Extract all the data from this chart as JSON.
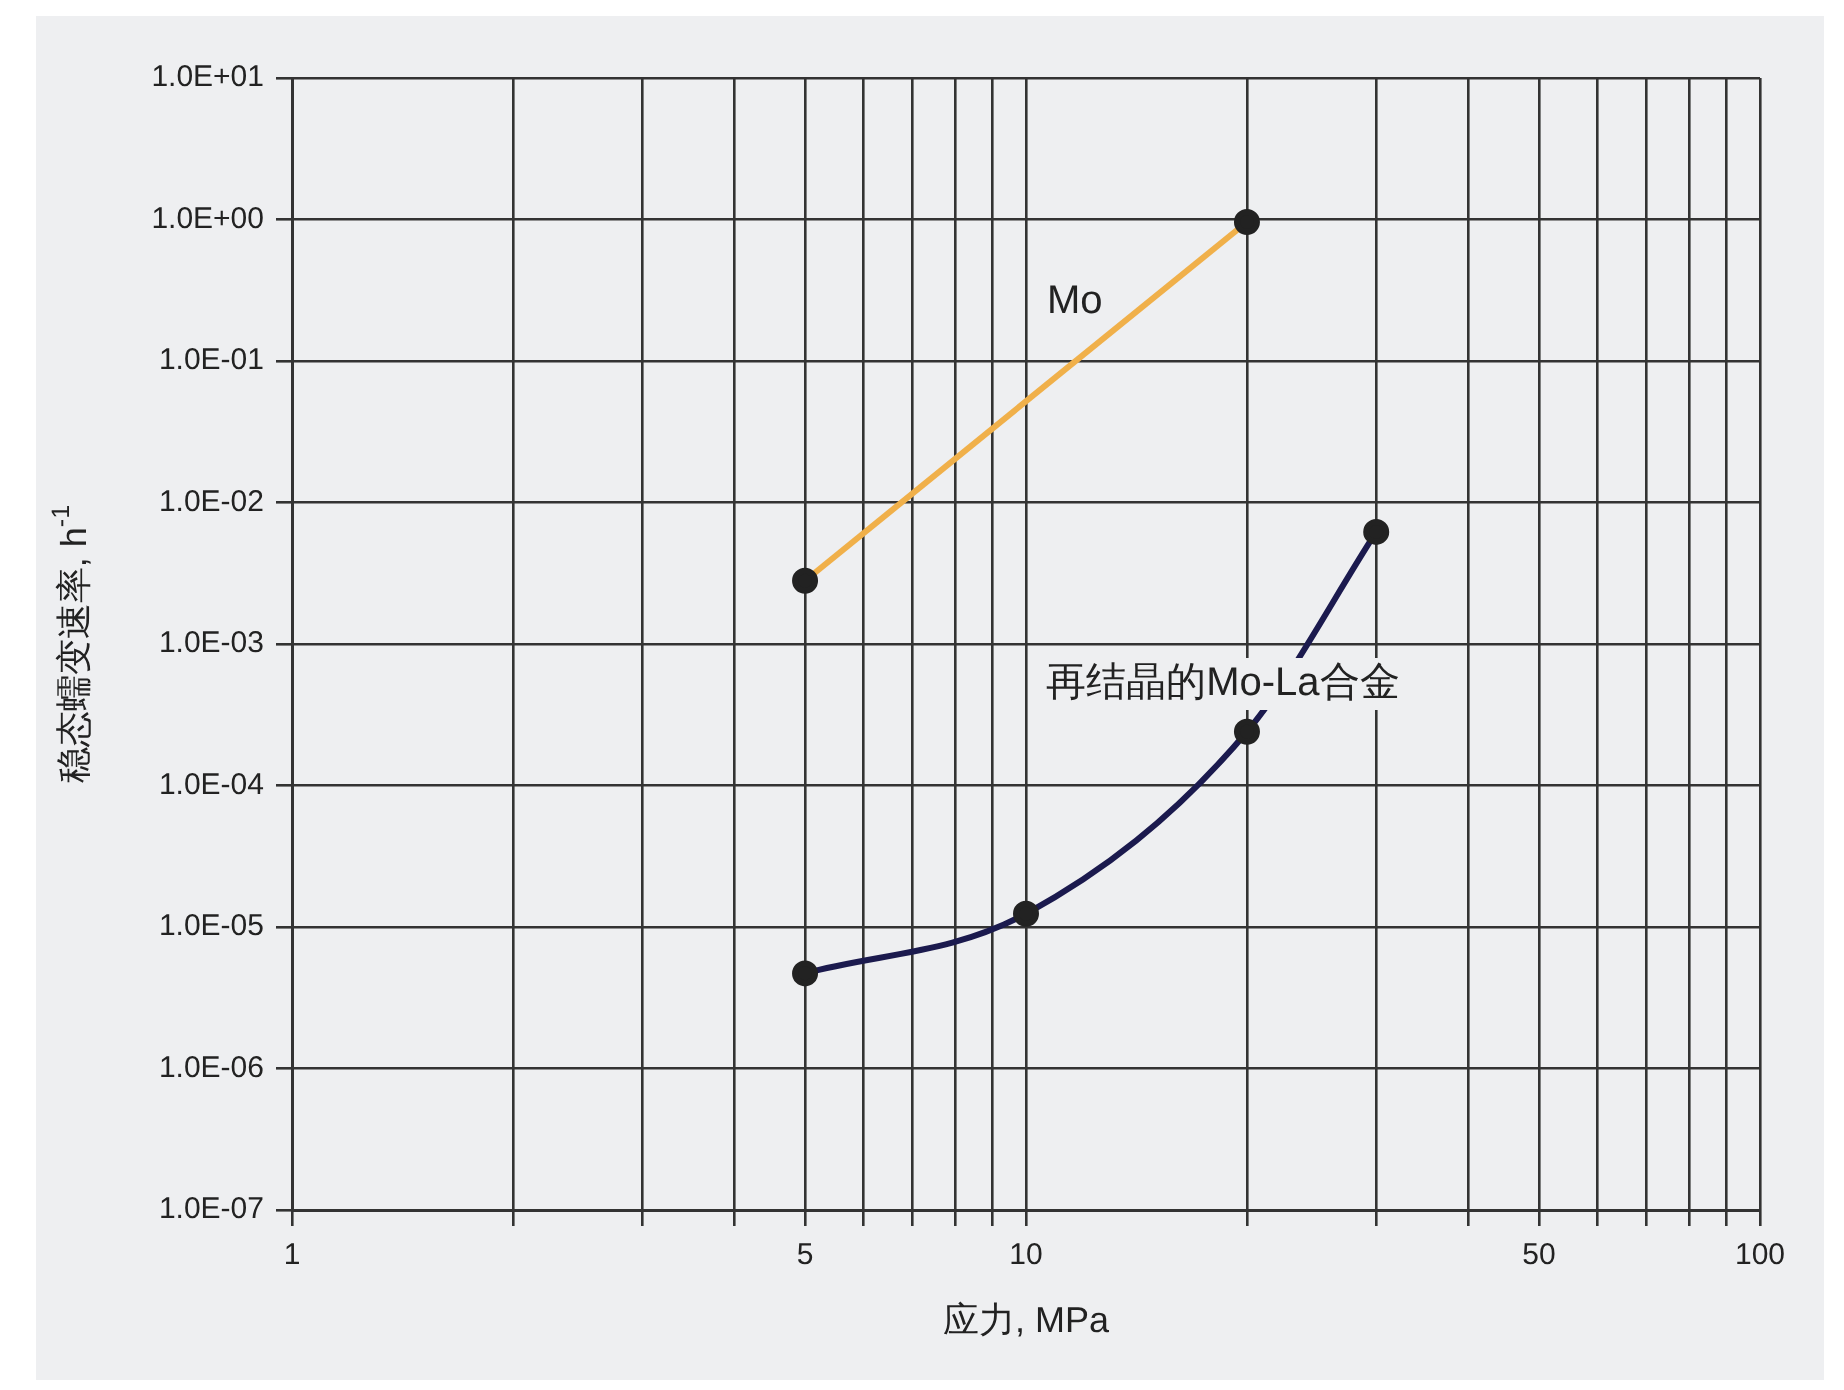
{
  "chart_data": {
    "type": "line",
    "xlabel": "应力, MPa",
    "ylabel": "稳态蠕变速率, h$^{-1}$",
    "log": "xy",
    "grid": true,
    "legend": false,
    "marker": "circle",
    "line_style": "solid",
    "xlim": [
      1,
      100
    ],
    "xticks": [
      1,
      {
        "value": 2,
        "label": null
      },
      {
        "value": 3,
        "label": null
      },
      {
        "value": 4,
        "label": null
      },
      5,
      {
        "value": 6,
        "label": null
      },
      {
        "value": 7,
        "label": null
      },
      {
        "value": 8,
        "label": null
      },
      {
        "value": 9,
        "label": null
      },
      10,
      {
        "value": 20,
        "label": null
      },
      {
        "value": 30,
        "label": null
      },
      {
        "value": 40,
        "label": null
      },
      50,
      {
        "value": 60,
        "label": null
      },
      {
        "value": 70,
        "label": null
      },
      {
        "value": 80,
        "label": null
      },
      {
        "value": 90,
        "label": null
      },
      100
    ],
    "ylim": [
      1e-07,
      10
    ],
    "yticks": [
      {
        "value": 1e-07,
        "label": "1.0E-07"
      },
      {
        "value": 1e-06,
        "label": "1.0E-06"
      },
      {
        "value": 1e-05,
        "label": "1.0E-05"
      },
      {
        "value": 0.0001,
        "label": "1.0E-04"
      },
      {
        "value": 0.001,
        "label": "1.0E-03"
      },
      {
        "value": 0.01,
        "label": "1.0E-02"
      },
      {
        "value": 0.1,
        "label": "1.0E-01"
      },
      {
        "value": 1,
        "label": "1.0E+00"
      },
      {
        "value": 10,
        "label": "1.0E+01"
      }
    ],
    "series": [
      {
        "name": "Mo",
        "color": "#f0b04a",
        "x": [
          5,
          20
        ],
        "values": [
          0.0028,
          0.96
        ]
      },
      {
        "name": "再结晶的Mo-La合金",
        "color": "#1b1a4e",
        "x": [
          5,
          10,
          20,
          30
        ],
        "values": [
          4.7e-06,
          1.24e-05,
          0.00024,
          0.0062
        ]
      }
    ]
  }
}
